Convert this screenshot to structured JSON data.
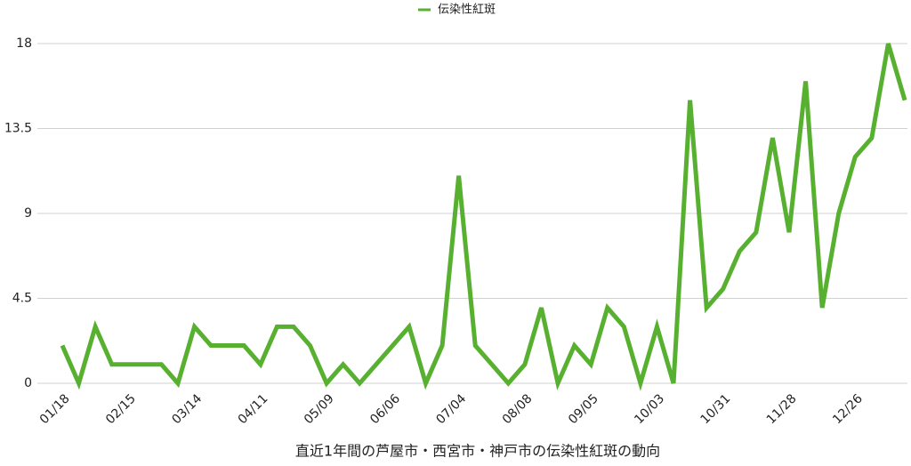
{
  "chart_data": {
    "type": "line",
    "x_label": "直近1年間の芦屋市・西宮市・神戸市の伝染性紅斑の動向",
    "categories": [
      "01/18",
      null,
      null,
      null,
      "02/15",
      null,
      null,
      null,
      "03/14",
      null,
      null,
      null,
      "04/11",
      null,
      null,
      null,
      "05/09",
      null,
      null,
      null,
      "06/06",
      null,
      null,
      null,
      "07/04",
      null,
      null,
      null,
      "08/08",
      null,
      null,
      null,
      "09/05",
      null,
      null,
      null,
      "10/03",
      null,
      null,
      null,
      "10/31",
      null,
      null,
      null,
      "11/28",
      null,
      null,
      null,
      "12/26",
      null,
      null,
      null
    ],
    "series": [
      {
        "name": "伝染性紅斑",
        "color": "#58b030",
        "values": [
          2,
          0,
          3,
          1,
          1,
          1,
          1,
          0,
          3,
          2,
          2,
          2,
          1,
          3,
          3,
          2,
          0,
          1,
          0,
          1,
          2,
          3,
          0,
          2,
          11,
          2,
          1,
          0,
          1,
          4,
          0,
          2,
          1,
          4,
          3,
          0,
          3,
          0,
          15,
          4,
          5,
          7,
          8,
          13,
          8,
          16,
          4,
          9,
          12,
          13,
          18,
          15
        ]
      }
    ],
    "ylim": [
      0,
      18
    ],
    "yticks": [
      0,
      4.5,
      9,
      13.5,
      18
    ],
    "grid": true,
    "legend": "top"
  }
}
